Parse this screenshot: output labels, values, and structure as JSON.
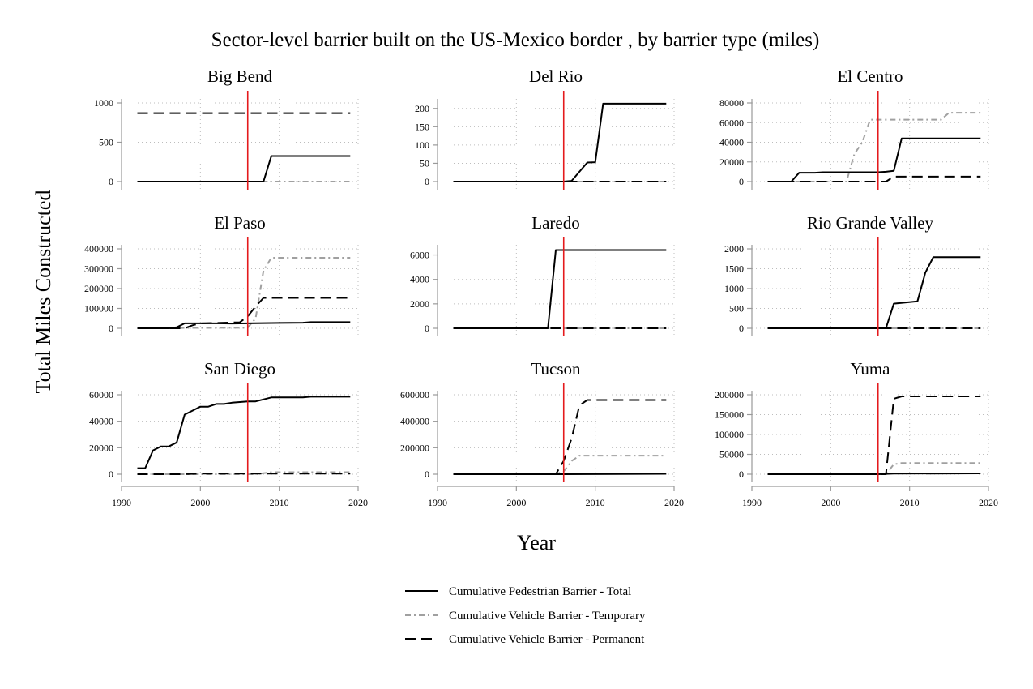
{
  "chart_data": {
    "type": "line",
    "title": "Sector-level barrier built on the US-Mexico border , by barrier type (miles)",
    "xlabel": "Year",
    "ylabel": "Total Miles Constructed",
    "xlim": [
      1990,
      2020
    ],
    "x_ticks": [
      "1990",
      "2000",
      "2010",
      "2020"
    ],
    "grid": true,
    "reference_line": {
      "x": 2006,
      "color": "#e41a1c"
    },
    "legend_position": "bottom",
    "legend": [
      {
        "label": "Cumulative Pedestrian Barrier - Total",
        "style": "solid",
        "color": "#000000"
      },
      {
        "label": "Cumulative Vehicle Barrier - Temporary",
        "style": "dashdot",
        "color": "#a0a0a0"
      },
      {
        "label": "Cumulative Vehicle Barrier - Permanent",
        "style": "dashed",
        "color": "#000000"
      }
    ],
    "panels": [
      {
        "title": "Big Bend",
        "ylim": [
          0,
          1000
        ],
        "y_ticks": [
          0,
          500,
          1000
        ],
        "series": [
          {
            "style": "solid",
            "x": [
              1992,
              2008,
              2009,
              2019
            ],
            "y": [
              0,
              0,
              325,
              325
            ]
          },
          {
            "style": "dashdot",
            "x": [
              1992,
              2019
            ],
            "y": [
              0,
              0
            ]
          },
          {
            "style": "dashed",
            "x": [
              1992,
              2019
            ],
            "y": [
              870,
              870
            ]
          }
        ]
      },
      {
        "title": "Del Rio",
        "ylim": [
          0,
          215
        ],
        "y_ticks": [
          0,
          50,
          100,
          150,
          200
        ],
        "series": [
          {
            "style": "solid",
            "x": [
              1992,
              2006,
              2007,
              2009,
              2010,
              2011,
              2019
            ],
            "y": [
              0,
              0,
              2,
              52,
              53,
              213,
              213
            ]
          },
          {
            "style": "dashdot",
            "x": [
              1992,
              2019
            ],
            "y": [
              0,
              0
            ]
          },
          {
            "style": "dashed",
            "x": [
              1992,
              2019
            ],
            "y": [
              0,
              0
            ]
          }
        ]
      },
      {
        "title": "El Centro",
        "ylim": [
          0,
          80000
        ],
        "y_ticks": [
          0,
          20000,
          40000,
          60000,
          80000
        ],
        "series": [
          {
            "style": "solid",
            "x": [
              1992,
              1995,
              1996,
              1998,
              1999,
              2003,
              2006,
              2007,
              2008,
              2009,
              2019
            ],
            "y": [
              0,
              0,
              9000,
              9000,
              9500,
              9500,
              9500,
              10000,
              11000,
              44000,
              44000
            ]
          },
          {
            "style": "dashdot",
            "x": [
              1992,
              2002,
              2003,
              2004,
              2005,
              2006,
              2014,
              2015,
              2019
            ],
            "y": [
              0,
              0,
              28000,
              40000,
              63000,
              63000,
              63000,
              70000,
              70000
            ]
          },
          {
            "style": "dashed",
            "x": [
              1992,
              2007,
              2008,
              2019
            ],
            "y": [
              0,
              0,
              5000,
              5000
            ]
          }
        ]
      },
      {
        "title": "El Paso",
        "ylim": [
          0,
          400000
        ],
        "y_ticks": [
          0,
          100000,
          200000,
          300000,
          400000
        ],
        "series": [
          {
            "style": "solid",
            "x": [
              1992,
              1996,
              1997,
              1998,
              1999,
              2000,
              2002,
              2004,
              2006,
              2010,
              2013,
              2014,
              2019
            ],
            "y": [
              0,
              0,
              5000,
              25000,
              25000,
              25000,
              25000,
              24000,
              25000,
              27000,
              28000,
              31000,
              31000
            ]
          },
          {
            "style": "dashdot",
            "x": [
              1992,
              1997,
              1998,
              2000,
              2006,
              2007,
              2008,
              2009,
              2019
            ],
            "y": [
              0,
              0,
              2000,
              2000,
              3000,
              50000,
              290000,
              355000,
              355000
            ]
          },
          {
            "style": "dashed",
            "x": [
              1992,
              1998,
              1999,
              2000,
              2005,
              2006,
              2007,
              2008,
              2019
            ],
            "y": [
              0,
              0,
              15000,
              25000,
              30000,
              60000,
              110000,
              153000,
              153000
            ]
          }
        ]
      },
      {
        "title": "Laredo",
        "ylim": [
          0,
          6500
        ],
        "y_ticks": [
          0,
          2000,
          4000,
          6000
        ],
        "series": [
          {
            "style": "solid",
            "x": [
              1992,
              2004,
              2005,
              2019
            ],
            "y": [
              0,
              0,
              6400,
              6400
            ]
          },
          {
            "style": "dashdot",
            "x": [
              1992,
              2019
            ],
            "y": [
              0,
              0
            ]
          },
          {
            "style": "dashed",
            "x": [
              1992,
              2019
            ],
            "y": [
              0,
              0
            ]
          }
        ]
      },
      {
        "title": "Rio Grande Valley",
        "ylim": [
          0,
          2000
        ],
        "y_ticks": [
          0,
          500,
          1000,
          1500,
          2000
        ],
        "series": [
          {
            "style": "solid",
            "x": [
              1992,
              2007,
              2008,
              2011,
              2012,
              2013,
              2019
            ],
            "y": [
              0,
              0,
              620,
              680,
              1400,
              1790,
              1790
            ]
          },
          {
            "style": "dashdot",
            "x": [
              1992,
              2019
            ],
            "y": [
              0,
              0
            ]
          },
          {
            "style": "dashed",
            "x": [
              1992,
              2019
            ],
            "y": [
              0,
              0
            ]
          }
        ]
      },
      {
        "title": "San Diego",
        "ylim": [
          0,
          60000
        ],
        "y_ticks": [
          0,
          20000,
          40000,
          60000
        ],
        "series": [
          {
            "style": "solid",
            "x": [
              1992,
              1993,
              1994,
              1995,
              1996,
              1997,
              1998,
              1999,
              2000,
              2001,
              2002,
              2003,
              2004,
              2005,
              2006,
              2007,
              2009,
              2013,
              2014,
              2019
            ],
            "y": [
              4500,
              4500,
              18000,
              21000,
              21000,
              24000,
              45000,
              48000,
              51000,
              51000,
              53000,
              53000,
              54000,
              54500,
              55000,
              55000,
              58000,
              58000,
              58500,
              58500
            ]
          },
          {
            "style": "dashdot",
            "x": [
              1992,
              2007,
              2009,
              2019
            ],
            "y": [
              0,
              0,
              1500,
              1500
            ]
          },
          {
            "style": "dashed",
            "x": [
              1992,
              1998,
              2000,
              2019
            ],
            "y": [
              0,
              0,
              500,
              500
            ]
          }
        ]
      },
      {
        "title": "Tucson",
        "ylim": [
          0,
          600000
        ],
        "y_ticks": [
          0,
          200000,
          400000,
          600000
        ],
        "series": [
          {
            "style": "solid",
            "x": [
              1992,
              2006,
              2019
            ],
            "y": [
              0,
              0,
              3000
            ]
          },
          {
            "style": "dashdot",
            "x": [
              1992,
              2005,
              2006,
              2007,
              2008,
              2019
            ],
            "y": [
              0,
              0,
              20000,
              100000,
              140000,
              140000
            ]
          },
          {
            "style": "dashed",
            "x": [
              1992,
              2005,
              2006,
              2007,
              2008,
              2009,
              2019
            ],
            "y": [
              0,
              0,
              100000,
              270000,
              520000,
              560000,
              560000
            ]
          }
        ]
      },
      {
        "title": "Yuma",
        "ylim": [
          0,
          200000
        ],
        "y_ticks": [
          0,
          50000,
          100000,
          150000,
          200000
        ],
        "series": [
          {
            "style": "solid",
            "x": [
              1992,
              2006,
              2008,
              2019
            ],
            "y": [
              0,
              0,
              1500,
              2000
            ]
          },
          {
            "style": "dashdot",
            "x": [
              1992,
              2007,
              2008,
              2009,
              2019
            ],
            "y": [
              0,
              0,
              25000,
              28000,
              28000
            ]
          },
          {
            "style": "dashed",
            "x": [
              1992,
              2006,
              2007,
              2008,
              2009,
              2019
            ],
            "y": [
              0,
              0,
              0,
              190000,
              196000,
              196000
            ]
          }
        ]
      }
    ]
  }
}
